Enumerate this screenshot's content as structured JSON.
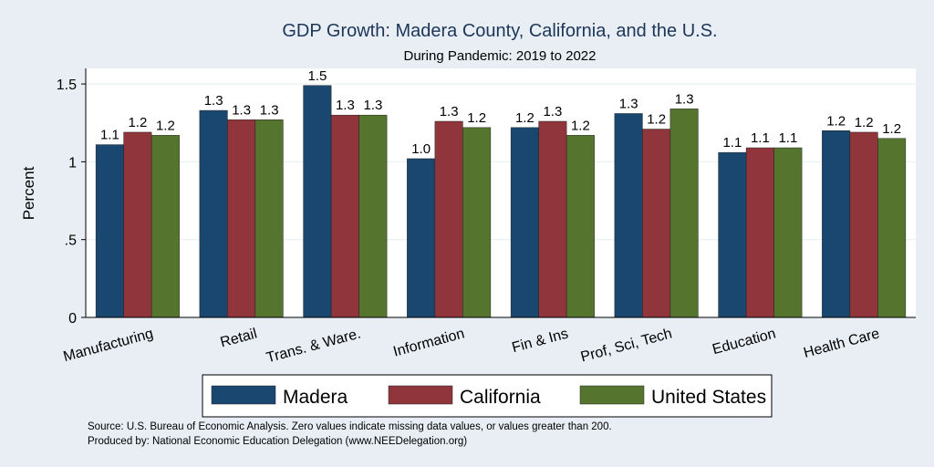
{
  "chart_data": {
    "type": "bar",
    "title": "GDP Growth: Madera County, California, and the U.S.",
    "subtitle": "During Pandemic: 2019 to 2022",
    "ylabel": "Percent",
    "ylim": [
      0,
      1.6
    ],
    "yticks": [
      {
        "value": 0,
        "label": "0"
      },
      {
        "value": 0.5,
        "label": ".5"
      },
      {
        "value": 1,
        "label": "1"
      },
      {
        "value": 1.5,
        "label": "1.5"
      }
    ],
    "grid": true,
    "legend_position": "bottom",
    "categories": [
      "Manufacturing",
      "Retail",
      "Trans. & Ware.",
      "Information",
      "Fin & Ins",
      "Prof, Sci, Tech",
      "Education",
      "Health Care"
    ],
    "series": [
      {
        "name": "Madera",
        "color": "#1a476f",
        "values": [
          1.11,
          1.33,
          1.49,
          1.02,
          1.22,
          1.31,
          1.06,
          1.2
        ],
        "labels": [
          "1.1",
          "1.3",
          "1.5",
          "1.0",
          "1.2",
          "1.3",
          "1.1",
          "1.2"
        ]
      },
      {
        "name": "California",
        "color": "#90353b",
        "values": [
          1.19,
          1.27,
          1.3,
          1.26,
          1.26,
          1.21,
          1.09,
          1.19
        ],
        "labels": [
          "1.2",
          "1.3",
          "1.3",
          "1.3",
          "1.3",
          "1.2",
          "1.1",
          "1.2"
        ]
      },
      {
        "name": "United States",
        "color": "#55752f",
        "values": [
          1.17,
          1.27,
          1.3,
          1.22,
          1.17,
          1.34,
          1.09,
          1.15
        ],
        "labels": [
          "1.2",
          "1.3",
          "1.3",
          "1.2",
          "1.2",
          "1.3",
          "1.1",
          "1.2"
        ]
      }
    ]
  },
  "notes": {
    "source": "Source: U.S. Bureau of Economic Analysis. Zero values indicate missing data values, or values greater than 200.",
    "produced": "Produced by: National Economic Education Delegation (www.NEEDelegation.org)"
  },
  "colors": {
    "background": "#e8eef4",
    "plot_background": "#ffffff",
    "title": "#1c3659"
  }
}
